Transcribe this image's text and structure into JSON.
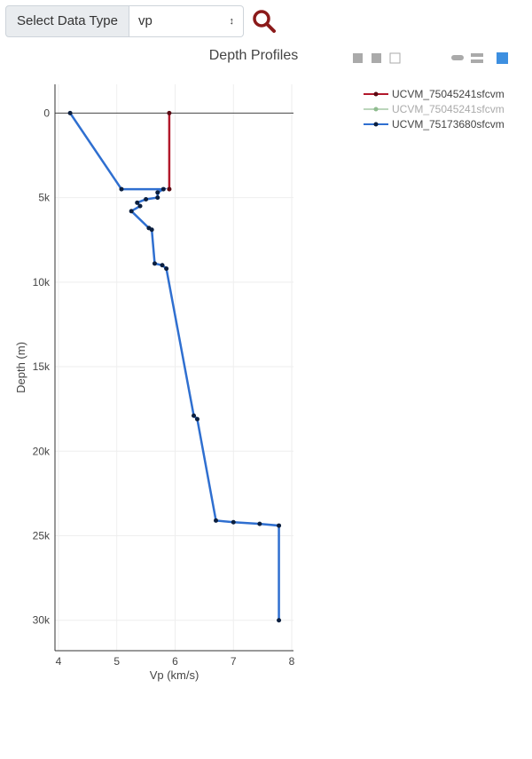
{
  "ui": {
    "select_label": "Select Data Type",
    "selected": "vp"
  },
  "chart_data": {
    "type": "line",
    "title": "Depth Profiles",
    "xlabel": "Vp (km/s)",
    "ylabel": "Depth (m)",
    "xlim": [
      3.94,
      8.03
    ],
    "ylim": [
      -1700,
      31800
    ],
    "y_reversed": true,
    "xticks": [
      4,
      5,
      6,
      7,
      8
    ],
    "yticks": [
      0,
      {
        "value": 5000,
        "label": "5k"
      },
      {
        "value": 10000,
        "label": "10k"
      },
      {
        "value": 15000,
        "label": "15k"
      },
      {
        "value": 20000,
        "label": "20k"
      },
      {
        "value": 25000,
        "label": "25k"
      },
      {
        "value": 30000,
        "label": "30k"
      }
    ],
    "grid": true,
    "legend": "right",
    "series": [
      {
        "name": "UCVM_75045241sfcvm",
        "color": "#b2182b",
        "marker_color": "#5a0a12",
        "visible": true,
        "x": [
          5.9,
          5.9
        ],
        "y": [
          0,
          4500
        ]
      },
      {
        "name": "UCVM_75045241sfcvm",
        "color": "#8fbc8f",
        "visible": "legendonly"
      },
      {
        "name": "UCVM_75173680sfcvm",
        "color": "#2f6fd0",
        "marker_color": "#0b1f3f",
        "visible": true,
        "x": [
          4.2,
          5.08,
          5.8,
          5.7,
          5.7,
          5.5,
          5.35,
          5.4,
          5.25,
          5.55,
          5.6,
          5.65,
          5.78,
          5.85,
          6.32,
          6.38,
          6.7,
          7.0,
          7.45,
          7.78,
          7.78
        ],
        "y": [
          0,
          4500,
          4500,
          4700,
          5000,
          5100,
          5300,
          5500,
          5800,
          6800,
          6900,
          8900,
          9000,
          9200,
          17900,
          18100,
          24100,
          24200,
          24300,
          24400,
          30000
        ]
      }
    ]
  }
}
